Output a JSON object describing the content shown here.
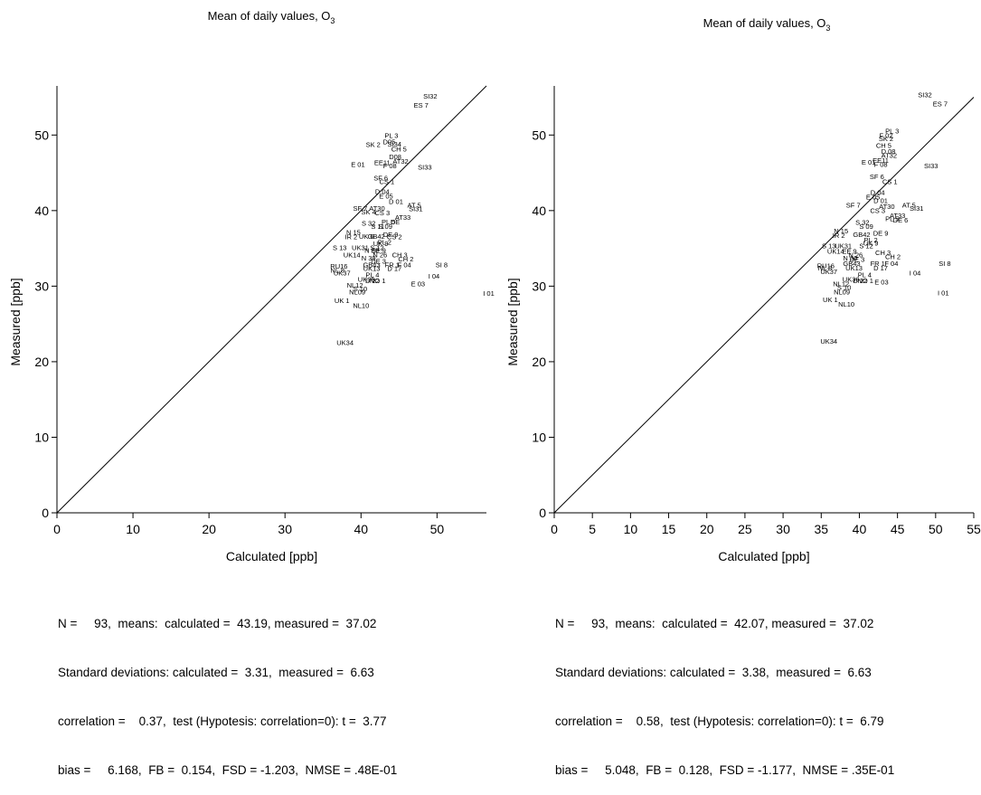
{
  "chart_data": [
    {
      "type": "scatter",
      "title": "Mean of daily values, O",
      "title_subscript": "3",
      "xlabel": "Calculated [ppb]",
      "ylabel": "Measured [ppb]",
      "xlim": [
        0,
        56.5
      ],
      "ylim": [
        0,
        56.5
      ],
      "xticks": [
        0,
        10,
        20,
        30,
        40,
        50
      ],
      "yticks": [
        0,
        10,
        20,
        30,
        40,
        50
      ],
      "reference_line": "1:1",
      "points": [
        {
          "label": "SI32",
          "x": 49.1,
          "y": 54.8
        },
        {
          "label": "ES 7",
          "x": 47.9,
          "y": 53.6
        },
        {
          "label": "PL 3",
          "x": 44.0,
          "y": 49.6
        },
        {
          "label": "D05",
          "x": 43.7,
          "y": 48.8
        },
        {
          "label": "SK 2",
          "x": 41.6,
          "y": 48.4
        },
        {
          "label": "SI34",
          "x": 44.4,
          "y": 48.5
        },
        {
          "label": "CH 5",
          "x": 45.0,
          "y": 47.8
        },
        {
          "label": "D08",
          "x": 44.5,
          "y": 46.8
        },
        {
          "label": "AT32",
          "x": 45.2,
          "y": 46.2
        },
        {
          "label": "EE11",
          "x": 42.8,
          "y": 46.0
        },
        {
          "label": "F 08",
          "x": 43.8,
          "y": 45.6
        },
        {
          "label": "E 01",
          "x": 39.6,
          "y": 45.8
        },
        {
          "label": "SI33",
          "x": 48.4,
          "y": 45.4
        },
        {
          "label": "SF 6",
          "x": 42.6,
          "y": 44.0
        },
        {
          "label": "CS 1",
          "x": 43.4,
          "y": 43.5
        },
        {
          "label": "D 04",
          "x": 42.8,
          "y": 42.2
        },
        {
          "label": "E 05",
          "x": 43.3,
          "y": 41.6
        },
        {
          "label": "D 01",
          "x": 44.6,
          "y": 40.9
        },
        {
          "label": "AT 5",
          "x": 47.0,
          "y": 40.4
        },
        {
          "label": "SI31",
          "x": 47.2,
          "y": 39.9
        },
        {
          "label": "SF 7",
          "x": 39.9,
          "y": 40.0
        },
        {
          "label": "AT30",
          "x": 42.1,
          "y": 40.0
        },
        {
          "label": "SK 4",
          "x": 41.0,
          "y": 39.5
        },
        {
          "label": "CS 3",
          "x": 42.8,
          "y": 39.4
        },
        {
          "label": "AT33",
          "x": 45.5,
          "y": 38.8
        },
        {
          "label": "S 32",
          "x": 41.0,
          "y": 38.0
        },
        {
          "label": "PL 5",
          "x": 43.6,
          "y": 38.2
        },
        {
          "label": "DE",
          "x": 44.5,
          "y": 38.2
        },
        {
          "label": "S 11",
          "x": 42.2,
          "y": 37.6
        },
        {
          "label": "S 09",
          "x": 43.2,
          "y": 37.6
        },
        {
          "label": "N 15",
          "x": 39.0,
          "y": 36.8
        },
        {
          "label": "IR 2",
          "x": 38.7,
          "y": 36.2
        },
        {
          "label": "UK 6",
          "x": 40.7,
          "y": 36.3
        },
        {
          "label": "GB42",
          "x": 42.0,
          "y": 36.3
        },
        {
          "label": "DE 9",
          "x": 43.9,
          "y": 36.5
        },
        {
          "label": "CS 2",
          "x": 44.4,
          "y": 36.2
        },
        {
          "label": "PL 2",
          "x": 43.1,
          "y": 35.5
        },
        {
          "label": "UK 9",
          "x": 42.6,
          "y": 35.3
        },
        {
          "label": "S 13",
          "x": 37.2,
          "y": 34.8
        },
        {
          "label": "UK31",
          "x": 39.9,
          "y": 34.8
        },
        {
          "label": "S 12",
          "x": 42.1,
          "y": 34.8
        },
        {
          "label": "N 30",
          "x": 41.4,
          "y": 34.4
        },
        {
          "label": "EE 9",
          "x": 42.3,
          "y": 34.4
        },
        {
          "label": "UK14",
          "x": 38.8,
          "y": 33.8
        },
        {
          "label": "N 26",
          "x": 42.5,
          "y": 33.8
        },
        {
          "label": "CH 3",
          "x": 45.1,
          "y": 33.8
        },
        {
          "label": "N 39",
          "x": 41.0,
          "y": 33.4
        },
        {
          "label": "CH 2",
          "x": 45.9,
          "y": 33.3
        },
        {
          "label": "DE 3",
          "x": 42.3,
          "y": 33.0
        },
        {
          "label": "GB43",
          "x": 41.4,
          "y": 32.5
        },
        {
          "label": "FR 1",
          "x": 44.1,
          "y": 32.5
        },
        {
          "label": "F 04",
          "x": 45.7,
          "y": 32.5
        },
        {
          "label": "SI 8",
          "x": 50.6,
          "y": 32.5
        },
        {
          "label": "RU16",
          "x": 37.1,
          "y": 32.3
        },
        {
          "label": "UK13",
          "x": 41.4,
          "y": 32.0
        },
        {
          "label": "D 17",
          "x": 44.4,
          "y": 32.0
        },
        {
          "label": "NL 8",
          "x": 36.9,
          "y": 31.8
        },
        {
          "label": "UK37",
          "x": 37.5,
          "y": 31.4
        },
        {
          "label": "I 04",
          "x": 49.6,
          "y": 31.0
        },
        {
          "label": "PL 4",
          "x": 41.5,
          "y": 31.2
        },
        {
          "label": "UK36",
          "x": 40.7,
          "y": 30.6
        },
        {
          "label": "D 22",
          "x": 41.5,
          "y": 30.4
        },
        {
          "label": "NO 1",
          "x": 42.2,
          "y": 30.4
        },
        {
          "label": "E 03",
          "x": 47.5,
          "y": 30.0
        },
        {
          "label": "NL12",
          "x": 39.2,
          "y": 29.8
        },
        {
          "label": "S 10",
          "x": 39.9,
          "y": 29.3
        },
        {
          "label": "NL09",
          "x": 39.5,
          "y": 28.9
        },
        {
          "label": "I 01",
          "x": 56.8,
          "y": 28.7
        },
        {
          "label": "UK 1",
          "x": 37.5,
          "y": 27.8
        },
        {
          "label": "NL10",
          "x": 40.0,
          "y": 27.1
        },
        {
          "label": "UK34",
          "x": 37.9,
          "y": 22.2
        }
      ],
      "stats": [
        "N =     93,  means:  calculated =  43.19, measured =  37.02",
        "Standard deviations: calculated =  3.31,  measured =  6.63",
        "correlation =    0.37,  test (Hypotesis: correlation=0): t =  3.77",
        "bias =     6.168,  FB =  0.154,  FSD = -1.203,  NMSE = .48E-01"
      ]
    },
    {
      "type": "scatter",
      "title": "Mean of daily values, O",
      "title_subscript": "3",
      "xlabel": "Calculated [ppb]",
      "ylabel": "Measured [ppb]",
      "xlim": [
        0,
        55
      ],
      "ylim": [
        0,
        56.5
      ],
      "xticks": [
        0,
        5,
        10,
        15,
        20,
        25,
        30,
        35,
        40,
        45,
        50,
        55
      ],
      "yticks": [
        0,
        10,
        20,
        30,
        40,
        50
      ],
      "reference_line": "1:1",
      "points": [
        {
          "label": "SI32",
          "x": 48.6,
          "y": 55.0
        },
        {
          "label": "ES 7",
          "x": 50.6,
          "y": 53.8
        },
        {
          "label": "PL 3",
          "x": 44.3,
          "y": 50.2
        },
        {
          "label": "F 02",
          "x": 43.5,
          "y": 49.6
        },
        {
          "label": "SK 2",
          "x": 43.5,
          "y": 49.2
        },
        {
          "label": "CH 5",
          "x": 43.2,
          "y": 48.3
        },
        {
          "label": "D 08",
          "x": 43.8,
          "y": 47.5
        },
        {
          "label": "AT32",
          "x": 43.9,
          "y": 47.0
        },
        {
          "label": "EE11",
          "x": 42.8,
          "y": 46.3
        },
        {
          "label": "E 01",
          "x": 41.2,
          "y": 46.1
        },
        {
          "label": "F 08",
          "x": 42.8,
          "y": 45.8
        },
        {
          "label": "SI33",
          "x": 49.4,
          "y": 45.6
        },
        {
          "label": "SF 6",
          "x": 42.3,
          "y": 44.2
        },
        {
          "label": "CS 1",
          "x": 44.0,
          "y": 43.5
        },
        {
          "label": "D 04",
          "x": 42.4,
          "y": 42.1
        },
        {
          "label": "E 05",
          "x": 41.8,
          "y": 41.5
        },
        {
          "label": "D 01",
          "x": 42.8,
          "y": 41.0
        },
        {
          "label": "SF 7",
          "x": 39.2,
          "y": 40.4
        },
        {
          "label": "AT 5",
          "x": 46.5,
          "y": 40.4
        },
        {
          "label": "AT30",
          "x": 43.6,
          "y": 40.2
        },
        {
          "label": "SI31",
          "x": 47.5,
          "y": 40.0
        },
        {
          "label": "CS 3",
          "x": 42.4,
          "y": 39.7
        },
        {
          "label": "AT33",
          "x": 45.0,
          "y": 39.0
        },
        {
          "label": "PL 5",
          "x": 44.3,
          "y": 38.6
        },
        {
          "label": "DE 6",
          "x": 45.4,
          "y": 38.4
        },
        {
          "label": "S 32",
          "x": 40.4,
          "y": 38.1
        },
        {
          "label": "S 09",
          "x": 40.9,
          "y": 37.6
        },
        {
          "label": "N 15",
          "x": 37.6,
          "y": 37.0
        },
        {
          "label": "IR 2",
          "x": 37.3,
          "y": 36.4
        },
        {
          "label": "GB42",
          "x": 40.3,
          "y": 36.5
        },
        {
          "label": "DE 9",
          "x": 42.8,
          "y": 36.7
        },
        {
          "label": "PL 2",
          "x": 41.5,
          "y": 35.8
        },
        {
          "label": "UK 9",
          "x": 41.5,
          "y": 35.4
        },
        {
          "label": "S 13",
          "x": 36.0,
          "y": 35.0
        },
        {
          "label": "UK31",
          "x": 37.9,
          "y": 35.0
        },
        {
          "label": "S 12",
          "x": 40.9,
          "y": 35.0
        },
        {
          "label": "UK14",
          "x": 36.9,
          "y": 34.3
        },
        {
          "label": "EE 9",
          "x": 38.7,
          "y": 34.3
        },
        {
          "label": "CH 3",
          "x": 43.1,
          "y": 34.1
        },
        {
          "label": "N 26",
          "x": 39.5,
          "y": 33.8
        },
        {
          "label": "CH 2",
          "x": 44.4,
          "y": 33.6
        },
        {
          "label": "N 30",
          "x": 38.8,
          "y": 33.4
        },
        {
          "label": "DE 3",
          "x": 39.7,
          "y": 33.2
        },
        {
          "label": "GB43",
          "x": 39.0,
          "y": 32.7
        },
        {
          "label": "FR 1",
          "x": 42.4,
          "y": 32.7
        },
        {
          "label": "F 04",
          "x": 44.2,
          "y": 32.7
        },
        {
          "label": "SI 8",
          "x": 51.2,
          "y": 32.7
        },
        {
          "label": "RU16",
          "x": 35.6,
          "y": 32.4
        },
        {
          "label": "NL 8",
          "x": 35.5,
          "y": 32.1
        },
        {
          "label": "UK13",
          "x": 39.3,
          "y": 32.1
        },
        {
          "label": "D 17",
          "x": 42.8,
          "y": 32.1
        },
        {
          "label": "UK37",
          "x": 36.0,
          "y": 31.6
        },
        {
          "label": "I 04",
          "x": 47.3,
          "y": 31.4
        },
        {
          "label": "PL 4",
          "x": 40.7,
          "y": 31.2
        },
        {
          "label": "UK36",
          "x": 38.9,
          "y": 30.6
        },
        {
          "label": "D 22",
          "x": 40.1,
          "y": 30.4
        },
        {
          "label": "NO 1",
          "x": 40.8,
          "y": 30.4
        },
        {
          "label": "E 03",
          "x": 42.9,
          "y": 30.2
        },
        {
          "label": "NL12",
          "x": 37.6,
          "y": 30.0
        },
        {
          "label": "S 10",
          "x": 38.0,
          "y": 29.5
        },
        {
          "label": "NL09",
          "x": 37.7,
          "y": 28.9
        },
        {
          "label": "I 01",
          "x": 51.0,
          "y": 28.8
        },
        {
          "label": "UK 1",
          "x": 36.2,
          "y": 27.9
        },
        {
          "label": "NL10",
          "x": 38.3,
          "y": 27.3
        },
        {
          "label": "UK34",
          "x": 36.0,
          "y": 22.4
        }
      ],
      "stats": [
        "N =     93,  means:  calculated =  42.07, measured =  37.02",
        "Standard deviations: calculated =  3.38,  measured =  6.63",
        "correlation =    0.58,  test (Hypotesis: correlation=0): t =  6.79",
        "bias =     5.048,  FB =  0.128,  FSD = -1.177,  NMSE = .35E-01"
      ]
    }
  ]
}
